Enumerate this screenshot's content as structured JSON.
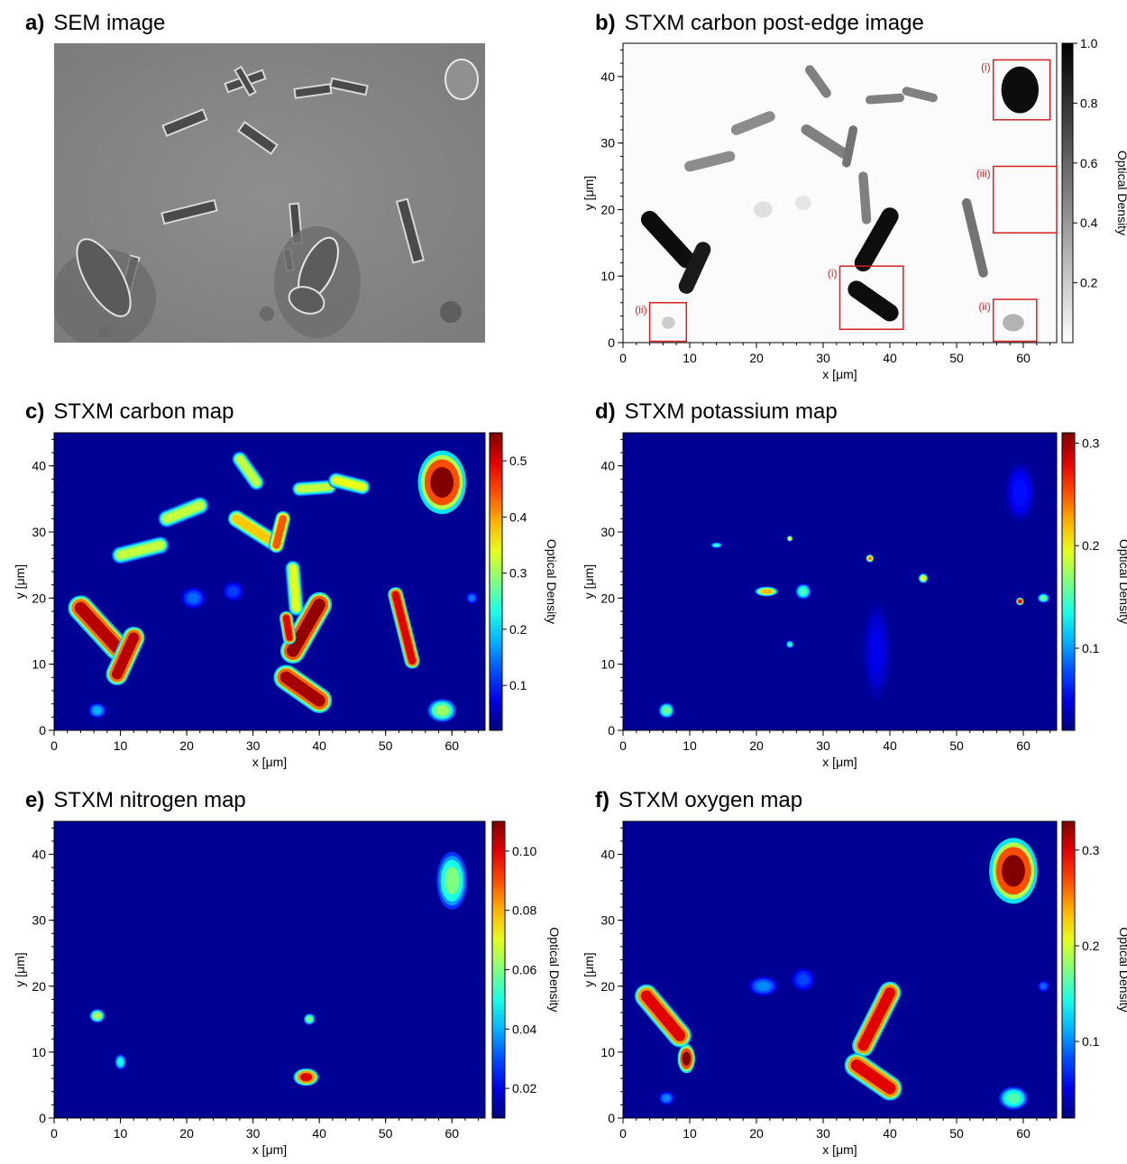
{
  "panels": [
    {
      "letter": "a)",
      "title": "SEM image"
    },
    {
      "letter": "b)",
      "title": "STXM carbon post-edge image"
    },
    {
      "letter": "c)",
      "title": "STXM carbon map"
    },
    {
      "letter": "d)",
      "title": "STXM potassium map"
    },
    {
      "letter": "e)",
      "title": "STXM nitrogen map"
    },
    {
      "letter": "f)",
      "title": "STXM oxygen map"
    }
  ],
  "chart_data": [
    {
      "type": "image",
      "panel": "a",
      "title": "SEM image"
    },
    {
      "type": "heatmap",
      "panel": "b",
      "title": "STXM carbon post-edge image",
      "xlabel": "x [μm]",
      "ylabel": "y [μm]",
      "xlim": [
        0,
        65
      ],
      "ylim": [
        0,
        45
      ],
      "xticks": [
        0,
        10,
        20,
        30,
        40,
        50,
        60
      ],
      "yticks": [
        0,
        10,
        20,
        30,
        40
      ],
      "colorbar": {
        "label": "Optical Density",
        "range": [
          0,
          1.0
        ],
        "ticks": [
          0.2,
          0.4,
          0.6,
          0.8,
          1.0
        ],
        "tick_labels": [
          "0.2",
          "0.4",
          "0.6",
          "0.8",
          "1.0"
        ],
        "colormap": "gray_reversed"
      },
      "annotations": [
        {
          "label": "(i)",
          "box": [
            [
              32.5,
              42
            ],
            [
              2,
              11.5
            ]
          ]
        },
        {
          "label": "(i)",
          "box": [
            [
              55.5,
              64
            ],
            [
              33.5,
              42.5
            ]
          ]
        },
        {
          "label": "(ii)",
          "box": [
            [
              4,
              9.5
            ],
            [
              0.2,
              6
            ]
          ]
        },
        {
          "label": "(ii)",
          "box": [
            [
              55.5,
              62
            ],
            [
              0.2,
              6.5
            ]
          ]
        },
        {
          "label": "(iii)",
          "box": [
            [
              55.5,
              65
            ],
            [
              16.5,
              26.5
            ]
          ]
        }
      ],
      "annotation_color": "#d62020"
    },
    {
      "type": "heatmap",
      "panel": "c",
      "title": "STXM carbon map",
      "xlabel": "x [μm]",
      "ylabel": "y [μm]",
      "xlim": [
        0,
        65
      ],
      "ylim": [
        0,
        45
      ],
      "xticks": [
        0,
        10,
        20,
        30,
        40,
        50,
        60
      ],
      "yticks": [
        0,
        10,
        20,
        30,
        40
      ],
      "colorbar": {
        "label": "Optical Density",
        "range": [
          0.02,
          0.55
        ],
        "ticks": [
          0.1,
          0.2,
          0.3,
          0.4,
          0.5
        ],
        "tick_labels": [
          "0.1",
          "0.2",
          "0.3",
          "0.4",
          "0.5"
        ],
        "colormap": "jet"
      }
    },
    {
      "type": "heatmap",
      "panel": "d",
      "title": "STXM potassium map",
      "xlabel": "x [μm]",
      "ylabel": "y [μm]",
      "xlim": [
        0,
        65
      ],
      "ylim": [
        0,
        45
      ],
      "xticks": [
        0,
        10,
        20,
        30,
        40,
        50,
        60
      ],
      "yticks": [
        0,
        10,
        20,
        30,
        40
      ],
      "colorbar": {
        "label": "Optical Density",
        "range": [
          0.02,
          0.31
        ],
        "ticks": [
          0.1,
          0.2,
          0.3
        ],
        "tick_labels": [
          "0.1",
          "0.2",
          "0.3"
        ],
        "colormap": "jet"
      }
    },
    {
      "type": "heatmap",
      "panel": "e",
      "title": "STXM nitrogen map",
      "xlabel": "x [μm]",
      "ylabel": "y [μm]",
      "xlim": [
        0,
        65
      ],
      "ylim": [
        0,
        45
      ],
      "xticks": [
        0,
        10,
        20,
        30,
        40,
        50,
        60
      ],
      "yticks": [
        0,
        10,
        20,
        30,
        40
      ],
      "colorbar": {
        "label": "Optical Density",
        "range": [
          0.01,
          0.11
        ],
        "ticks": [
          0.02,
          0.04,
          0.06,
          0.08,
          0.1
        ],
        "tick_labels": [
          "0.02",
          "0.04",
          "0.06",
          "0.08",
          "0.10"
        ],
        "colormap": "jet"
      }
    },
    {
      "type": "heatmap",
      "panel": "f",
      "title": "STXM oxygen map",
      "xlabel": "x [μm]",
      "ylabel": "y [μm]",
      "xlim": [
        0,
        65
      ],
      "ylim": [
        0,
        45
      ],
      "xticks": [
        0,
        10,
        20,
        30,
        40,
        50,
        60
      ],
      "yticks": [
        0,
        10,
        20,
        30,
        40
      ],
      "colorbar": {
        "label": "Optical Density",
        "range": [
          0.02,
          0.33
        ],
        "ticks": [
          0.1,
          0.2,
          0.3
        ],
        "tick_labels": [
          "0.1",
          "0.2",
          "0.3"
        ],
        "colormap": "jet"
      }
    }
  ]
}
